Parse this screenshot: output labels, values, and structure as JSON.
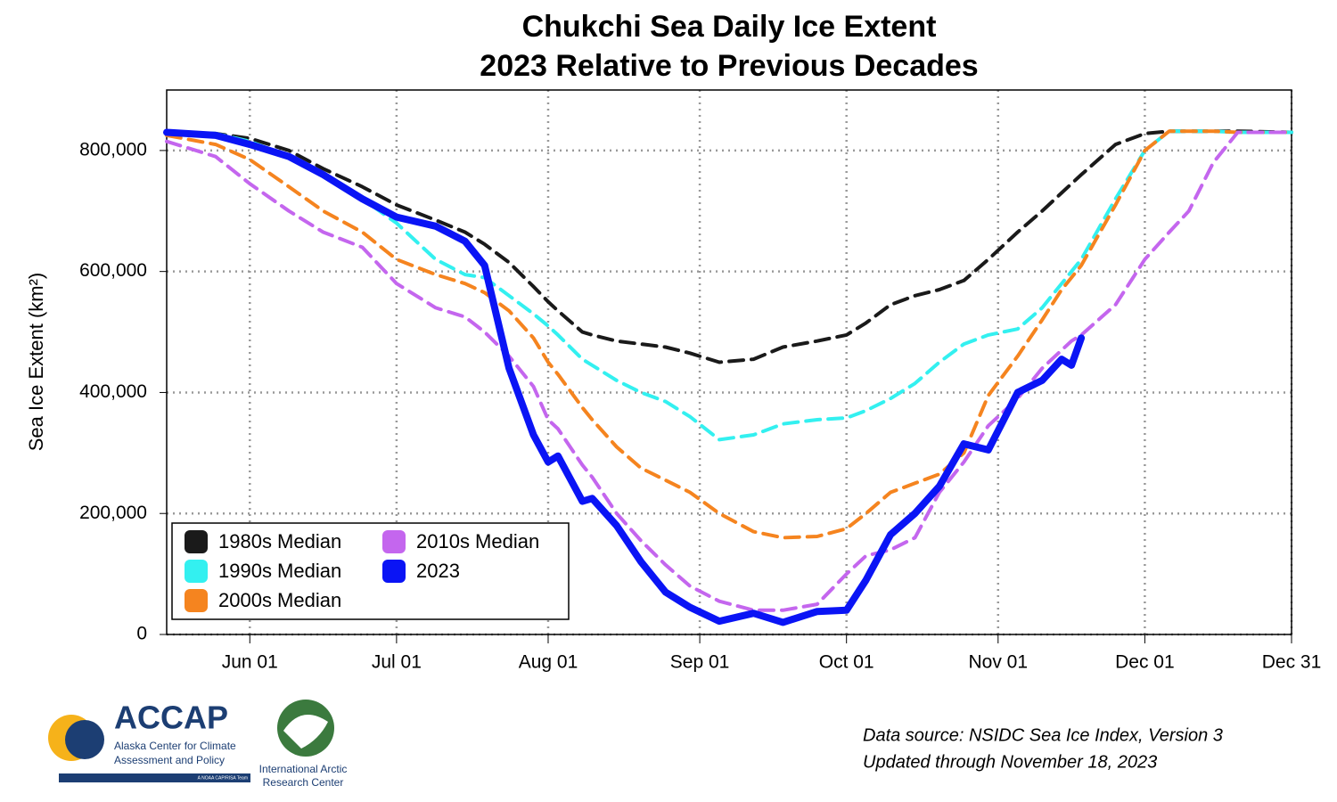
{
  "chart_data": {
    "type": "line",
    "title": "Chukchi Sea Daily Ice Extent",
    "subtitle": "2023 Relative to Previous Decades",
    "y_label": "Sea Ice Extent (km²)",
    "x": [
      135,
      145,
      152,
      160,
      167,
      175,
      182,
      190,
      196,
      200,
      205,
      210,
      213,
      215,
      220,
      222,
      227,
      232,
      237,
      242,
      248,
      255,
      261,
      268,
      274,
      278,
      283,
      288,
      293,
      298,
      303,
      309,
      314,
      318,
      320,
      322,
      329,
      335,
      340,
      344,
      349,
      354,
      365
    ],
    "series": [
      {
        "name": "1980s Median",
        "color": "#1a1a1a",
        "line_style": "dashed",
        "values": [
          830000,
          828000,
          820000,
          800000,
          770000,
          740000,
          710000,
          685000,
          665000,
          645000,
          615000,
          575000,
          550000,
          535000,
          500000,
          495000,
          485000,
          480000,
          475000,
          465000,
          450000,
          455000,
          475000,
          485000,
          495000,
          515000,
          545000,
          560000,
          570000,
          585000,
          620000,
          665000,
          700000,
          730000,
          745000,
          760000,
          810000,
          828000,
          832000,
          832000,
          832000,
          832000,
          830000
        ]
      },
      {
        "name": "1990s Median",
        "color": "#33f0f0",
        "line_style": "dashed",
        "values": [
          830000,
          828000,
          815000,
          790000,
          760000,
          720000,
          680000,
          620000,
          595000,
          590000,
          560000,
          530000,
          510000,
          495000,
          455000,
          445000,
          420000,
          400000,
          385000,
          360000,
          322000,
          330000,
          348000,
          355000,
          358000,
          370000,
          390000,
          415000,
          450000,
          480000,
          495000,
          505000,
          540000,
          580000,
          600000,
          620000,
          720000,
          800000,
          832000,
          832000,
          832000,
          830000,
          830000
        ]
      },
      {
        "name": "2000s Median",
        "color": "#f5841f",
        "line_style": "dashed",
        "values": [
          825000,
          810000,
          785000,
          740000,
          700000,
          665000,
          620000,
          595000,
          580000,
          565000,
          535000,
          490000,
          450000,
          430000,
          375000,
          355000,
          310000,
          275000,
          255000,
          235000,
          200000,
          170000,
          160000,
          162000,
          175000,
          200000,
          235000,
          250000,
          265000,
          300000,
          395000,
          460000,
          520000,
          570000,
          590000,
          610000,
          710000,
          800000,
          832000,
          832000,
          832000,
          830000,
          830000
        ]
      },
      {
        "name": "2010s Median",
        "color": "#c466ee",
        "line_style": "dashed",
        "values": [
          815000,
          790000,
          745000,
          700000,
          665000,
          640000,
          580000,
          540000,
          525000,
          500000,
          460000,
          410000,
          355000,
          340000,
          280000,
          260000,
          200000,
          155000,
          115000,
          80000,
          55000,
          40000,
          40000,
          50000,
          100000,
          130000,
          140000,
          160000,
          235000,
          285000,
          345000,
          390000,
          440000,
          470000,
          485000,
          495000,
          545000,
          620000,
          665000,
          700000,
          780000,
          830000,
          830000
        ]
      },
      {
        "name": "2023",
        "color": "#0a14f5",
        "line_style": "solid",
        "values": [
          830000,
          825000,
          810000,
          790000,
          760000,
          720000,
          690000,
          675000,
          650000,
          610000,
          440000,
          330000,
          285000,
          295000,
          220000,
          225000,
          180000,
          120000,
          70000,
          45000,
          22000,
          35000,
          20000,
          38000,
          40000,
          90000,
          165000,
          200000,
          245000,
          315000,
          305000,
          400000,
          420000,
          455000,
          445000,
          490000,
          null,
          null,
          null,
          null,
          null,
          null,
          null
        ]
      }
    ],
    "xlim": [
      135,
      365
    ],
    "xticks": [
      {
        "value": 152,
        "label": "Jun 01"
      },
      {
        "value": 182,
        "label": "Jul 01"
      },
      {
        "value": 213,
        "label": "Aug 01"
      },
      {
        "value": 244,
        "label": "Sep 01"
      },
      {
        "value": 274,
        "label": "Oct 01"
      },
      {
        "value": 305,
        "label": "Nov 01"
      },
      {
        "value": 335,
        "label": "Dec 01"
      },
      {
        "value": 365,
        "label": "Dec 31"
      }
    ],
    "ylim": [
      0,
      900000
    ],
    "yticks": [
      0,
      {
        "value": 200000,
        "label": "200,000"
      },
      {
        "value": 400000,
        "label": "400,000"
      },
      {
        "value": 600000,
        "label": "600,000"
      },
      {
        "value": 800000,
        "label": "800,000"
      }
    ],
    "grid": true,
    "legend": "lower left",
    "notes": [
      "Data source: NSIDC Sea Ice Index, Version 3",
      "Updated through November 18, 2023"
    ],
    "logos": {
      "acronym": "ACCAP",
      "name": [
        "Alaska Center for Climate",
        "Assessment and Policy"
      ],
      "team": "A NOAA CAP/RISA Team",
      "partner": [
        "International Arctic",
        "Research Center"
      ]
    }
  }
}
